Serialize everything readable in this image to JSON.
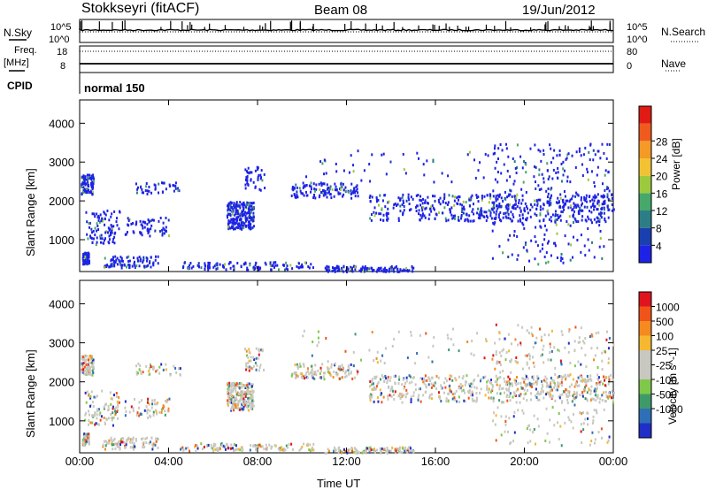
{
  "header": {
    "station": "Stokkseyri (fitACF)",
    "beam": "Beam 08",
    "date": "19/Jun/2012"
  },
  "strip_panels": {
    "nsky_label": "N.Sky",
    "nsky_top_tick": "10^5",
    "nsky_bottom_tick": "10^0",
    "nsearch_label": "N.Search",
    "freq_label_1": "Freq.",
    "freq_label_2": "[MHz]",
    "freq_ticks": [
      "18",
      "8"
    ],
    "nave_label": "Nave",
    "nave_ticks": [
      "80",
      "0"
    ],
    "cpid_label": "CPID",
    "cpid_value": "normal 150"
  },
  "chart_data": [
    {
      "type": "heatmap",
      "title": "",
      "xlabel": "Time UT",
      "ylabel": "Slant Range [km]",
      "x_ticks": [
        "00:00",
        "04:00",
        "08:00",
        "12:00",
        "16:00",
        "20:00",
        "00:00"
      ],
      "y_ticks": [
        1000,
        2000,
        3000,
        4000
      ],
      "ylim": [
        180,
        4600
      ],
      "xlim_hours": [
        0,
        24
      ],
      "colorbar": {
        "label": "Power [dB]",
        "ticks": [
          4,
          8,
          12,
          16,
          20,
          24,
          28
        ],
        "colors": [
          "#1e22e6",
          "#1a3fb0",
          "#2d7d86",
          "#46a86a",
          "#9cc93e",
          "#f2c233",
          "#f59a26",
          "#f05a1e",
          "#e01b14"
        ]
      }
    },
    {
      "type": "heatmap",
      "title": "",
      "xlabel": "Time UT",
      "ylabel": "Slant Range [km]",
      "x_ticks": [
        "00:00",
        "04:00",
        "08:00",
        "12:00",
        "16:00",
        "20:00",
        "00:00"
      ],
      "y_ticks": [
        1000,
        2000,
        3000,
        4000
      ],
      "ylim": [
        180,
        4600
      ],
      "xlim_hours": [
        0,
        24
      ],
      "colorbar": {
        "label": "Velocity [m s^-1]",
        "ticks": [
          "1000",
          "500",
          "100",
          "25",
          "-25",
          "-100",
          "-500",
          "-1000"
        ],
        "colors": [
          "#1f2fc8",
          "#2e6fb8",
          "#3f9a6a",
          "#7fc84a",
          "#c8c8c0",
          "#c8c8c0",
          "#f5b830",
          "#f58a20",
          "#f05418",
          "#e0141e"
        ]
      }
    }
  ]
}
